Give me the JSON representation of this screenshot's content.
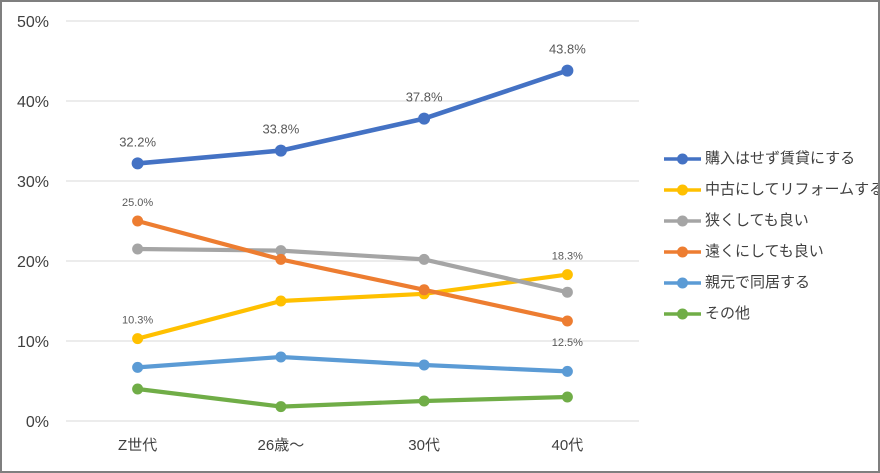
{
  "chart_data": {
    "type": "line",
    "categories": [
      "Z世代",
      "26歳～",
      "30代",
      "40代"
    ],
    "series": [
      {
        "name": "購入はせず賃貸にする",
        "color": "#4472C4",
        "values": [
          32.2,
          33.8,
          37.8,
          43.8
        ],
        "point_labels": [
          "32.2%",
          "33.8%",
          "37.8%",
          "43.8%"
        ],
        "point_label_positions": [
          "above",
          "above",
          "above",
          "above"
        ],
        "label_font_size": 13,
        "line_width": 4.6,
        "marker_radius": 6
      },
      {
        "name": "中古にしてリフォームする",
        "color": "#FFC000",
        "values": [
          10.3,
          15.0,
          15.9,
          18.3
        ],
        "point_labels": [
          "10.3%",
          null,
          null,
          "18.3%"
        ],
        "point_label_positions": [
          "above",
          null,
          null,
          "above"
        ],
        "label_font_size": 11,
        "line_width": 4.2,
        "marker_radius": 5.5
      },
      {
        "name": "狭くしても良い",
        "color": "#A5A5A5",
        "values": [
          21.5,
          21.3,
          20.2,
          16.1
        ],
        "point_labels": [
          null,
          null,
          null,
          null
        ],
        "point_label_positions": [
          null,
          null,
          null,
          null
        ],
        "label_font_size": 11,
        "line_width": 4.2,
        "marker_radius": 5.5
      },
      {
        "name": "遠くにしても良い",
        "color": "#ED7D31",
        "values": [
          25.0,
          20.2,
          16.4,
          12.5
        ],
        "point_labels": [
          "25.0%",
          null,
          null,
          "12.5%"
        ],
        "point_label_positions": [
          "above",
          null,
          null,
          "below"
        ],
        "label_font_size": 11,
        "line_width": 4.2,
        "marker_radius": 5.5
      },
      {
        "name": "親元で同居する",
        "color": "#5B9BD5",
        "values": [
          6.7,
          8.0,
          7.0,
          6.2
        ],
        "point_labels": [
          null,
          null,
          null,
          null
        ],
        "point_label_positions": [
          null,
          null,
          null,
          null
        ],
        "label_font_size": 11,
        "line_width": 4.2,
        "marker_radius": 5.5
      },
      {
        "name": "その他",
        "color": "#70AD47",
        "values": [
          4.0,
          1.8,
          2.5,
          3.0
        ],
        "point_labels": [
          null,
          null,
          null,
          null
        ],
        "point_label_positions": [
          null,
          null,
          null,
          null
        ],
        "label_font_size": 11,
        "line_width": 4.2,
        "marker_radius": 5.5
      }
    ],
    "y_ticks": [
      {
        "value": 0,
        "label": "0%"
      },
      {
        "value": 10,
        "label": "10%"
      },
      {
        "value": 20,
        "label": "20%"
      },
      {
        "value": 30,
        "label": "30%"
      },
      {
        "value": 40,
        "label": "40%"
      },
      {
        "value": 50,
        "label": "50%"
      }
    ],
    "ylim": [
      0,
      50
    ],
    "xlabel": "",
    "ylabel": "",
    "title": "",
    "grid": true,
    "legend_position": "right"
  },
  "colors": {
    "grid": "#D9D9D9",
    "axis_text": "#404040",
    "point_label_text": "#595959",
    "background": "#FFFFFF",
    "border": "#7F7F7F"
  }
}
